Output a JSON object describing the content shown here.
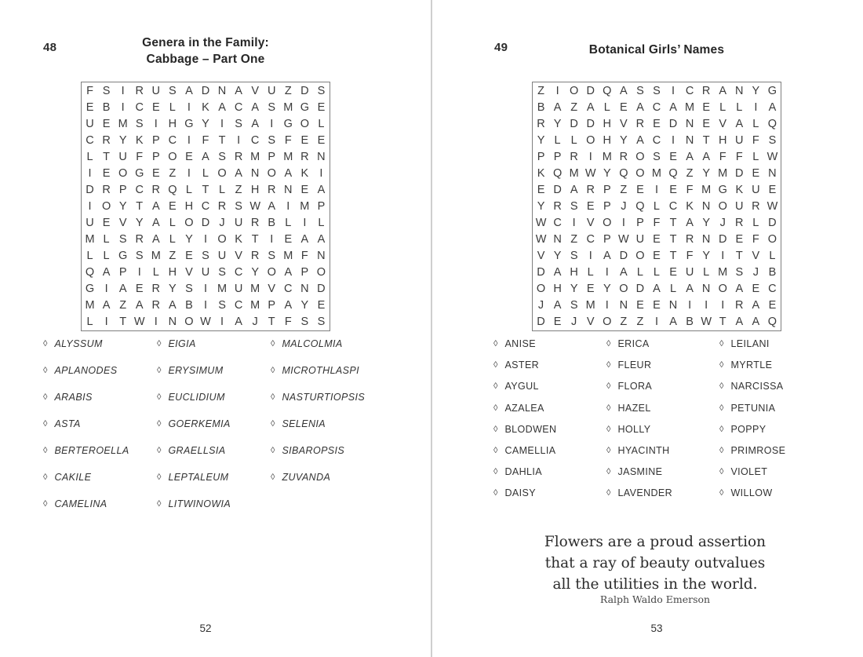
{
  "bullet": "◊",
  "divider_color": "#cfcfcf",
  "left": {
    "number": "48",
    "title_lines": [
      "Genera in the Family:",
      "Cabbage – Part One"
    ],
    "grid": [
      "FSIRUSADNAVUZDS",
      "EBICELIKACASMGE",
      "UEMSIHGYISAIGOL",
      "CRYKPCIFTICSFEE",
      "LTUFPOEASRMPMRN",
      "IEOGEZILOANOAKI",
      "DRPCRQLTLZHRNEA",
      "IOYTAEHCRSWAIMP",
      "UEVYALODJURBLIL",
      "MLSRALYIOKTIEAA",
      "LLGSMZESUVRSMFN",
      "QAPILHVUSCYOAPO",
      "GIAERYSIMUMVCND",
      "MAZARABISCMPAYE",
      "LITWINOWIAJTFSS"
    ],
    "word_columns": [
      [
        "ALYSSUM",
        "APLANODES",
        "ARABIS",
        "ASTA",
        "BERTEROELLA",
        "CAKILE",
        "CAMELINA"
      ],
      [
        "EIGIA",
        "ERYSIMUM",
        "EUCLIDIUM",
        "GOERKEMIA",
        "GRAELLSIA",
        "LEPTALEUM",
        "LITWINOWIA"
      ],
      [
        "MALCOLMIA",
        "MICROTHLASPI",
        "NASTURTIOPSIS",
        "SELENIA",
        "SIBAROPSIS",
        "ZUVANDA"
      ]
    ],
    "footer": "52"
  },
  "right": {
    "number": "49",
    "title_lines": [
      "Botanical Girls’ Names"
    ],
    "grid": [
      "ZIODQASSICRANYG",
      "BAZALEACAMELLIA",
      "RYDDHVREDNEVALQ",
      "YLLOHYACINTHUFS",
      "PPRIMROSEAAFFLW",
      "KQMWYQOMQZYMDEN",
      "EDARPZEIEFMGKUE",
      "YRSEPJQLCKNOURW",
      "WCIVOIPFTAYJRLD",
      "WNZCPWUETRNDEFO",
      "VYSIADOETFYITVL",
      "DAHLIALLEULMSJB",
      "OHYEYODALANOAEC",
      "JASMINEENIIIRAE",
      "DEJVOZZIABWTAAQ"
    ],
    "word_columns": [
      [
        "ANISE",
        "ASTER",
        "AYGUL",
        "AZALEA",
        "BLODWEN",
        "CAMELLIA",
        "DAHLIA",
        "DAISY"
      ],
      [
        "ERICA",
        "FLEUR",
        "FLORA",
        "HAZEL",
        "HOLLY",
        "HYACINTH",
        "JASMINE",
        "LAVENDER"
      ],
      [
        "LEILANI",
        "MYRTLE",
        "NARCISSA",
        "PETUNIA",
        "POPPY",
        "PRIMROSE",
        "VIOLET",
        "WILLOW"
      ]
    ],
    "quote_lines": [
      "Flowers are a proud assertion",
      "that a ray of beauty outvalues",
      "all the utilities in the world."
    ],
    "quote_attribution": "Ralph Waldo Emerson",
    "footer": "53"
  }
}
